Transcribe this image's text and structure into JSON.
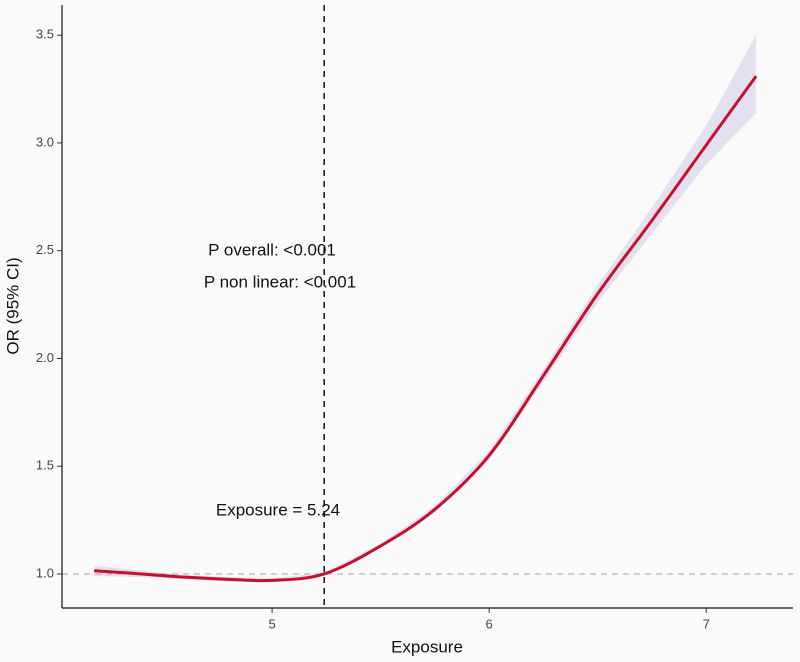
{
  "chart_data": {
    "type": "spline",
    "xlabel": "Exposure",
    "ylabel": "OR (95% CI)",
    "annotations": [
      "P overall: <0.001",
      "P non linear: <0.001",
      "Exposure = 5.24"
    ],
    "ref_x": 5.24,
    "ref_y": 1,
    "xlim": [
      4.032,
      7.4
    ],
    "ylim": [
      0.842,
      3.64
    ],
    "xticks": [
      5,
      6,
      7
    ],
    "yticks": [
      {
        "value": 1,
        "label": "1.0"
      },
      1.5,
      {
        "value": 2,
        "label": "2.0"
      },
      2.5,
      {
        "value": 3,
        "label": "3.0"
      },
      3.5
    ],
    "series": [
      {
        "name": "OR",
        "color": "#c8102e",
        "band_color": "#e3e1ef",
        "x": [
          4.18,
          4.4,
          4.6,
          4.8,
          5.0,
          5.24,
          5.5,
          5.75,
          6.0,
          6.25,
          6.5,
          6.75,
          7.0,
          7.23
        ],
        "values": [
          1.015,
          1.0,
          0.985,
          0.975,
          0.97,
          1.0,
          1.13,
          1.3,
          1.55,
          1.92,
          2.3,
          2.64,
          2.99,
          3.31
        ],
        "lower": [
          0.99,
          0.985,
          0.975,
          0.965,
          0.96,
          0.995,
          1.12,
          1.285,
          1.53,
          1.89,
          2.26,
          2.58,
          2.9,
          3.14
        ],
        "upper": [
          1.04,
          1.015,
          0.995,
          0.985,
          0.98,
          1.005,
          1.14,
          1.315,
          1.57,
          1.95,
          2.34,
          2.7,
          3.08,
          3.5
        ]
      }
    ]
  }
}
